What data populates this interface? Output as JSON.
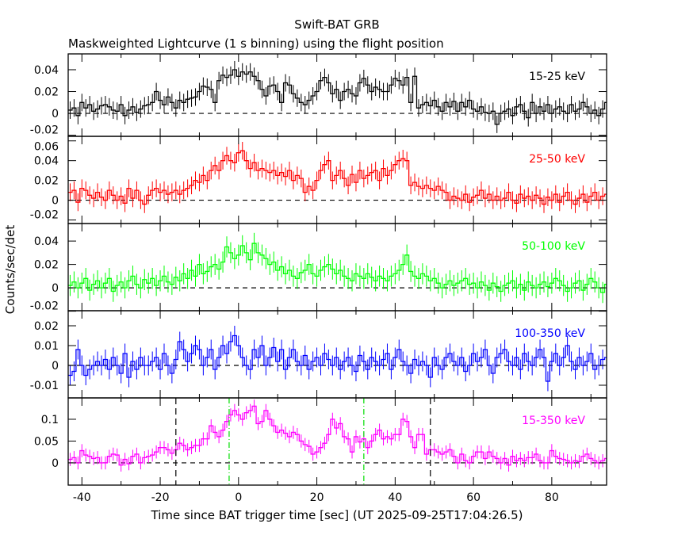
{
  "chart_data": {
    "type": "line",
    "title": "Swift-BAT GRB",
    "subtitle": "Maskweighted Lightcurve (1 s binning) using the flight position",
    "xlabel": "Time since BAT trigger time [sec] (UT 2025-09-25T17:04:26.5)",
    "ylabel": "Counts/sec/det",
    "xlim": [
      -43.5,
      94
    ],
    "x_start": -43,
    "bin_size": 1,
    "xticks": [
      -40,
      -20,
      0,
      20,
      40,
      60,
      80
    ],
    "panels": [
      {
        "name": "15-25 keV",
        "color": "#000000",
        "ylim": [
          -0.021,
          0.0545
        ],
        "yticks": [
          -0.02,
          0,
          0.02,
          0.04
        ],
        "ytick_labels": [
          "-0.02",
          "0",
          "0.02",
          "0.04"
        ],
        "error": 0.008,
        "values": [
          0.003,
          0.005,
          -0.002,
          0.01,
          0.005,
          0.008,
          0.002,
          0.004,
          0.007,
          0.008,
          0.006,
          0.003,
          0.002,
          0.008,
          -0.002,
          0.003,
          0.006,
          0.001,
          0.004,
          0.007,
          0.008,
          0.01,
          0.02,
          0.012,
          0.008,
          0.015,
          0.01,
          0.005,
          0.012,
          0.01,
          0.013,
          0.014,
          0.015,
          0.02,
          0.025,
          0.024,
          0.022,
          0.01,
          0.03,
          0.035,
          0.033,
          0.035,
          0.04,
          0.034,
          0.038,
          0.036,
          0.038,
          0.034,
          0.03,
          0.022,
          0.016,
          0.025,
          0.026,
          0.02,
          0.01,
          0.028,
          0.026,
          0.018,
          0.014,
          0.01,
          0.008,
          0.012,
          0.016,
          0.02,
          0.03,
          0.033,
          0.028,
          0.018,
          0.022,
          0.012,
          0.02,
          0.022,
          0.018,
          0.016,
          0.028,
          0.032,
          0.026,
          0.02,
          0.024,
          0.022,
          0.02,
          0.02,
          0.026,
          0.032,
          0.03,
          0.026,
          0.033,
          0.01,
          0.034,
          0.005,
          0.008,
          0.01,
          0.007,
          0.012,
          0.006,
          0.002,
          0.01,
          0.006,
          0.011,
          0.002,
          0.01,
          0.006,
          0.012,
          0.004,
          0.002,
          0.006,
          0.001,
          0.0,
          0.002,
          -0.01,
          0.0,
          0.002,
          0.004,
          -0.002,
          0.006,
          0.008,
          0.002,
          -0.004,
          0.01,
          0.0,
          0.006,
          0.002,
          0.008,
          0.0,
          0.004,
          0.006,
          0.002,
          0.0,
          0.008,
          0.002,
          0.004,
          0.01,
          0.006,
          0.0,
          0.003,
          -0.002,
          0.004,
          0.01
        ]
      },
      {
        "name": "25-50 keV",
        "color": "#ff0000",
        "ylim": [
          -0.0236,
          0.0646
        ],
        "yticks": [
          -0.02,
          0,
          0.02,
          0.04,
          0.06
        ],
        "ytick_labels": [
          "-0.02",
          "0",
          "0.02",
          "0.04",
          "0.06"
        ],
        "error": 0.009,
        "values": [
          0.008,
          0.01,
          -0.002,
          0.012,
          0.01,
          0.005,
          0.002,
          0.008,
          0.003,
          0.0,
          0.01,
          0.005,
          0.0,
          0.004,
          -0.003,
          0.012,
          0.002,
          0.01,
          0.0,
          -0.004,
          0.005,
          0.01,
          0.012,
          0.008,
          0.01,
          0.006,
          0.008,
          0.01,
          0.006,
          0.01,
          0.012,
          0.015,
          0.02,
          0.018,
          0.025,
          0.02,
          0.03,
          0.035,
          0.03,
          0.04,
          0.045,
          0.04,
          0.038,
          0.048,
          0.05,
          0.04,
          0.032,
          0.038,
          0.03,
          0.032,
          0.03,
          0.028,
          0.03,
          0.025,
          0.028,
          0.024,
          0.03,
          0.02,
          0.025,
          0.022,
          0.008,
          0.014,
          0.01,
          0.02,
          0.03,
          0.036,
          0.04,
          0.02,
          0.025,
          0.03,
          0.022,
          0.015,
          0.026,
          0.018,
          0.03,
          0.022,
          0.025,
          0.028,
          0.03,
          0.02,
          0.032,
          0.025,
          0.03,
          0.036,
          0.04,
          0.042,
          0.04,
          0.015,
          0.018,
          0.014,
          0.012,
          0.015,
          0.012,
          0.01,
          0.014,
          0.01,
          0.008,
          0.0,
          0.004,
          0.002,
          0.0,
          0.006,
          -0.002,
          0.003,
          0.005,
          0.01,
          0.002,
          0.006,
          0.0,
          0.004,
          0.0,
          0.002,
          0.008,
          0.0,
          -0.003,
          0.006,
          0.002,
          0.004,
          0.0,
          0.005,
          0.002,
          -0.004,
          0.003,
          0.0,
          0.006,
          -0.002,
          0.004,
          0.008,
          0.0,
          -0.004,
          0.002,
          0.006,
          -0.002,
          0.004,
          0.008,
          0.0,
          0.004,
          0.006
        ]
      },
      {
        "name": "50-100 keV",
        "color": "#00ff00",
        "ylim": [
          -0.0196,
          0.055
        ],
        "yticks": [
          -0.02,
          0,
          0.02,
          0.04
        ],
        "ytick_labels": [
          "-0.02",
          "0",
          "0.02",
          "0.04"
        ],
        "error": 0.009,
        "values": [
          0.002,
          0.005,
          0.0,
          0.004,
          0.008,
          -0.002,
          0.003,
          0.006,
          0.0,
          0.004,
          0.008,
          -0.003,
          0.002,
          0.005,
          0.0,
          0.006,
          0.01,
          0.003,
          0.0,
          0.007,
          0.004,
          0.008,
          0.002,
          0.006,
          0.01,
          0.005,
          0.003,
          0.009,
          0.006,
          0.012,
          0.008,
          0.015,
          0.01,
          0.02,
          0.012,
          0.014,
          0.018,
          0.02,
          0.016,
          0.022,
          0.035,
          0.03,
          0.025,
          0.028,
          0.036,
          0.03,
          0.024,
          0.038,
          0.03,
          0.028,
          0.025,
          0.02,
          0.022,
          0.015,
          0.018,
          0.012,
          0.015,
          0.01,
          0.008,
          0.013,
          0.015,
          0.02,
          0.012,
          0.01,
          0.015,
          0.018,
          0.02,
          0.016,
          0.012,
          0.015,
          0.01,
          0.008,
          0.006,
          0.012,
          0.01,
          0.008,
          0.012,
          0.009,
          0.006,
          0.01,
          0.008,
          0.006,
          0.01,
          0.012,
          0.015,
          0.02,
          0.028,
          0.014,
          0.01,
          0.008,
          0.012,
          0.01,
          0.006,
          0.008,
          0.004,
          0.0,
          0.003,
          0.006,
          0.002,
          0.004,
          0.006,
          0.008,
          0.003,
          0.004,
          0.0,
          0.005,
          0.002,
          -0.002,
          0.004,
          0.001,
          -0.003,
          0.002,
          0.004,
          0.006,
          0.0,
          0.003,
          -0.002,
          0.005,
          0.002,
          0.0,
          0.003,
          0.005,
          0.001,
          0.004,
          0.008,
          0.006,
          0.002,
          -0.003,
          0.0,
          0.004,
          0.006,
          -0.002,
          0.003,
          0.008,
          0.005,
          0.0,
          -0.004,
          0.003
        ]
      },
      {
        "name": "100-350 keV",
        "color": "#0000ff",
        "ylim": [
          -0.0164,
          0.0276
        ],
        "yticks": [
          -0.01,
          0,
          0.01,
          0.02
        ],
        "ytick_labels": [
          "-0.01",
          "0",
          "0.01",
          "0.02"
        ],
        "error": 0.005,
        "values": [
          -0.005,
          -0.003,
          0.008,
          0.0,
          -0.005,
          -0.002,
          0.0,
          0.002,
          0.0,
          0.003,
          -0.002,
          0.004,
          0.0,
          -0.004,
          0.006,
          -0.006,
          0.002,
          -0.002,
          0.004,
          0.0,
          0.0,
          0.002,
          0.004,
          -0.002,
          0.006,
          0.0,
          -0.004,
          0.003,
          0.012,
          0.008,
          0.002,
          0.006,
          0.01,
          0.008,
          0.0,
          0.004,
          0.008,
          -0.002,
          0.004,
          0.01,
          0.006,
          0.012,
          0.015,
          0.01,
          0.004,
          0.0,
          -0.002,
          0.008,
          0.004,
          0.01,
          0.0,
          0.004,
          0.009,
          0.002,
          0.008,
          -0.002,
          0.004,
          0.008,
          0.002,
          0.0,
          0.005,
          -0.002,
          0.002,
          0.004,
          0.0,
          0.006,
          0.003,
          0.0,
          0.004,
          -0.002,
          0.002,
          0.004,
          0.0,
          -0.003,
          0.005,
          0.002,
          -0.002,
          0.004,
          0.002,
          0.0,
          0.003,
          0.006,
          -0.002,
          0.004,
          0.008,
          0.002,
          0.0,
          -0.004,
          0.003,
          0.0,
          0.002,
          0.0,
          -0.006,
          0.004,
          0.0,
          -0.002,
          0.004,
          0.006,
          0.002,
          0.0,
          0.004,
          -0.003,
          0.0,
          0.006,
          0.002,
          0.004,
          0.008,
          0.0,
          -0.004,
          0.004,
          0.006,
          0.008,
          0.002,
          0.0,
          0.004,
          -0.002,
          0.006,
          0.002,
          0.0,
          0.004,
          0.008,
          0.004,
          -0.008,
          0.002,
          0.006,
          0.0,
          0.004,
          0.01,
          0.002,
          -0.002,
          0.004,
          0.0,
          0.002,
          0.006,
          -0.002,
          0.0,
          0.003,
          0.004
        ]
      },
      {
        "name": "15-350 keV",
        "color": "#ff00ff",
        "ylim": [
          -0.051,
          0.149
        ],
        "yticks": [
          0,
          0.05,
          0.1
        ],
        "ytick_labels": [
          "0",
          "0.05",
          "0.1"
        ],
        "error": 0.015,
        "values": [
          0.008,
          0.012,
          0.0,
          0.028,
          0.018,
          0.015,
          0.01,
          0.012,
          0.0,
          0.0,
          0.015,
          0.02,
          0.018,
          -0.005,
          0.008,
          -0.002,
          0.015,
          0.02,
          0.0,
          0.012,
          0.015,
          0.018,
          0.025,
          0.035,
          0.035,
          0.03,
          0.022,
          0.03,
          0.045,
          0.04,
          0.03,
          0.035,
          0.04,
          0.04,
          0.055,
          0.055,
          0.085,
          0.07,
          0.06,
          0.075,
          0.095,
          0.11,
          0.12,
          0.11,
          0.1,
          0.115,
          0.12,
          0.13,
          0.09,
          0.095,
          0.12,
          0.1,
          0.085,
          0.07,
          0.075,
          0.068,
          0.06,
          0.07,
          0.065,
          0.05,
          0.042,
          0.038,
          0.02,
          0.025,
          0.035,
          0.045,
          0.065,
          0.1,
          0.08,
          0.09,
          0.06,
          0.055,
          0.025,
          0.06,
          0.048,
          0.055,
          0.035,
          0.05,
          0.065,
          0.075,
          0.055,
          0.06,
          0.055,
          0.065,
          0.065,
          0.1,
          0.095,
          0.06,
          0.035,
          0.065,
          0.065,
          0.02,
          0.03,
          0.03,
          0.025,
          0.02,
          0.025,
          0.03,
          0.015,
          0.0,
          0.02,
          0.005,
          0.0,
          0.015,
          0.025,
          0.025,
          0.01,
          0.025,
          0.015,
          0.01,
          0.0,
          0.01,
          -0.005,
          0.015,
          0.005,
          0.01,
          0.005,
          0.012,
          0.012,
          0.02,
          0.005,
          0.0,
          0.0,
          0.028,
          0.015,
          0.01,
          0.008,
          0.005,
          0.0,
          0.005,
          0.003,
          0.015,
          0.02,
          0.01,
          0.005,
          0.0,
          0.005,
          0.01
        ],
        "markers": {
          "black_dashed": [
            -16,
            49
          ],
          "green_dashdot": [
            -2.4,
            32
          ]
        }
      }
    ],
    "zero_line": "dashed",
    "legend": "top-right inside each panel"
  }
}
